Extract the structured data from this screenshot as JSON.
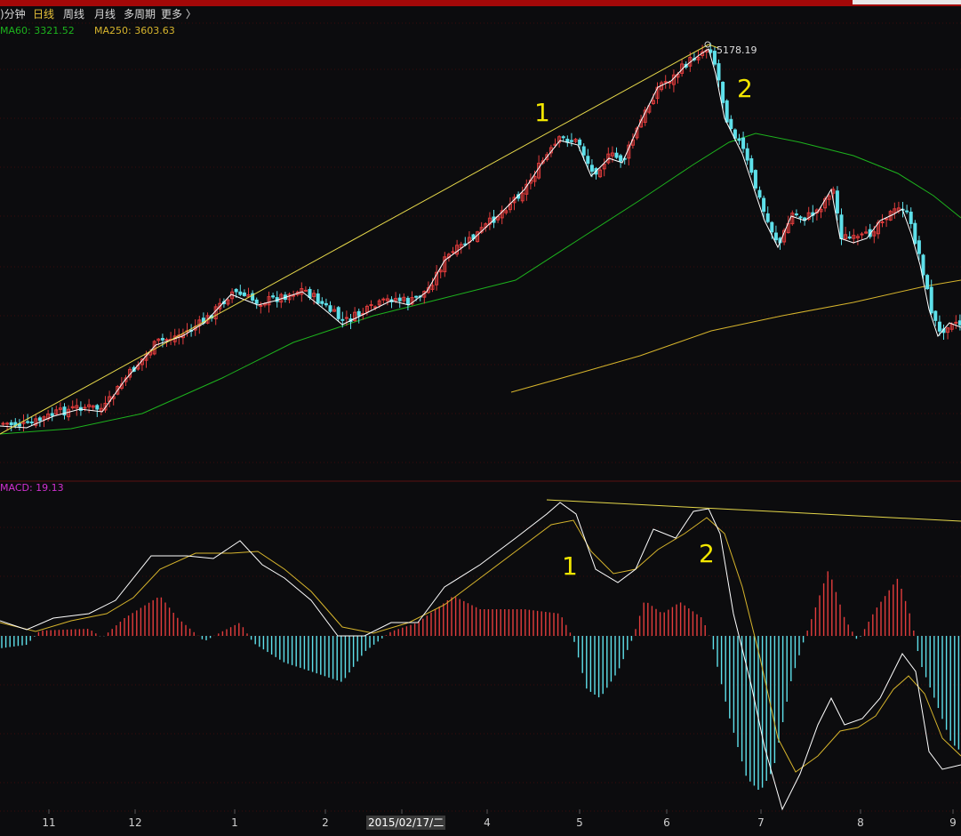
{
  "toolbar": {
    "period_min": ")分钟",
    "period_day": "日线",
    "period_week": "周线",
    "period_month": "月线",
    "period_multi": "多周期",
    "more": "更多 〉",
    "active_color": "#e8c23a",
    "default_color": "#d8d8d8"
  },
  "indicators": {
    "ma60_label": "MA60: 3321.52",
    "ma250_label": "MA250: 3603.63",
    "macd_label": "MACD: 19.13",
    "ma60_color": "#1db31d",
    "ma250_color": "#d6b42c",
    "macd_color": "#d030d0"
  },
  "chart_data": [
    {
      "type": "candlestick",
      "peak_label": "5178.19",
      "annotations": [
        "1",
        "2"
      ],
      "series": [
        {
          "name": "MA60",
          "value": 3321.52
        },
        {
          "name": "MA250",
          "value": 3603.63
        }
      ],
      "colors": {
        "up": "#e23c3c",
        "down": "#5ee0ea",
        "ma5": "#ffffff",
        "ma60": "#1db31d",
        "ma250": "#d6b42c",
        "trendline": "#e6d84a",
        "annotation": "#f2e600"
      }
    },
    {
      "type": "macd",
      "value": 19.13,
      "annotations": [
        "1",
        "2"
      ],
      "colors": {
        "dif": "#ffffff",
        "dea": "#d6b42c",
        "positive": "#e23c3c",
        "negative": "#5ee0ea",
        "trendline": "#e6d84a"
      }
    }
  ],
  "xaxis": {
    "labels": [
      "11",
      "12",
      "1",
      "2",
      "4",
      "5",
      "6",
      "7",
      "8",
      "9"
    ],
    "cursor_date": "2015/02/17/二"
  }
}
